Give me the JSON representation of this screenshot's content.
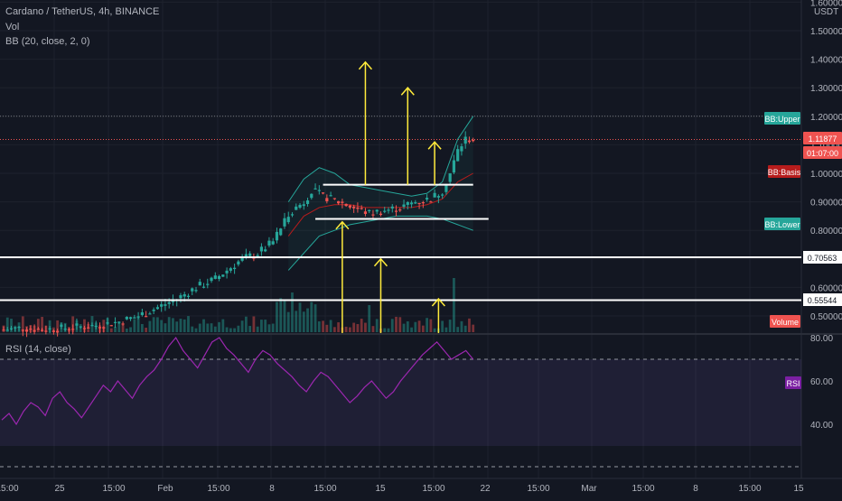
{
  "header": {
    "title": "Cardano / TetherUS, 4h, BINANCE",
    "vol_label": "Vol",
    "bb_label": "BB (20, close, 2, 0)",
    "rsi_label": "RSI (14, close)"
  },
  "price_axis": {
    "currency": "USDT",
    "ticks": [
      "1.60000",
      "1.50000",
      "1.40000",
      "1.30000",
      "1.20000",
      "1.10000",
      "1.00000",
      "0.90000",
      "0.80000",
      "0.70000",
      "0.60000",
      "0.50000"
    ],
    "tick_values": [
      1.6,
      1.5,
      1.4,
      1.3,
      1.2,
      1.1,
      1.0,
      0.9,
      0.8,
      0.7,
      0.6,
      0.5
    ]
  },
  "rsi_axis": {
    "ticks": [
      "80.00",
      "60.00",
      "40.00"
    ],
    "tick_values": [
      80,
      60,
      40
    ]
  },
  "badges": {
    "bb_upper": "BB:Upper",
    "last_price": "1.11877",
    "countdown": "01:07:00",
    "bb_basis": "BB:Basis",
    "bb_lower": "BB:Lower",
    "level_high": "0.70563",
    "level_low": "0.55544",
    "volume": "Volume",
    "rsi": "RSI"
  },
  "time_axis": [
    "15:00",
    "25",
    "15:00",
    "Feb",
    "15:00",
    "8",
    "15:00",
    "15",
    "15:00",
    "22",
    "15:00",
    "Mar",
    "15:00",
    "8",
    "15:00",
    "15"
  ],
  "colors": {
    "background": "#131722",
    "up": "#26a69a",
    "down": "#ef5350",
    "bb_band": "#26a69a",
    "bb_basis": "#b71c1c",
    "rsi_line": "#9c27b0",
    "annotation_arrow": "#ffeb3b",
    "annotation_line": "#ffffff",
    "grid": "#1e222d"
  },
  "chart_data": {
    "type": "candlestick",
    "symbol": "Cardano / TetherUS",
    "interval": "4h",
    "exchange": "BINANCE",
    "close_path": [
      [
        0,
        0.452
      ],
      [
        5,
        0.458
      ],
      [
        10,
        0.452
      ],
      [
        15,
        0.456
      ],
      [
        20,
        0.462
      ],
      [
        25,
        0.468
      ],
      [
        30,
        0.48
      ],
      [
        35,
        0.5
      ],
      [
        40,
        0.53
      ],
      [
        45,
        0.56
      ],
      [
        50,
        0.6
      ],
      [
        55,
        0.63
      ],
      [
        58,
        0.66
      ],
      [
        62,
        0.7
      ],
      [
        66,
        0.72
      ],
      [
        70,
        0.76
      ],
      [
        74,
        0.86
      ],
      [
        78,
        0.9
      ],
      [
        80,
        0.94
      ],
      [
        83,
        0.92
      ],
      [
        87,
        0.9
      ],
      [
        91,
        0.88
      ],
      [
        95,
        0.86
      ],
      [
        99,
        0.87
      ],
      [
        103,
        0.88
      ],
      [
        107,
        0.9
      ],
      [
        111,
        0.91
      ],
      [
        114,
        0.94
      ],
      [
        116,
        1.0
      ],
      [
        118,
        1.08
      ],
      [
        120,
        1.12
      ],
      [
        122,
        1.11877
      ]
    ],
    "bb_upper": [
      [
        74,
        0.9
      ],
      [
        78,
        0.98
      ],
      [
        82,
        1.02
      ],
      [
        86,
        1.0
      ],
      [
        90,
        0.96
      ],
      [
        94,
        0.95
      ],
      [
        98,
        0.94
      ],
      [
        102,
        0.93
      ],
      [
        106,
        0.92
      ],
      [
        110,
        0.93
      ],
      [
        114,
        0.97
      ],
      [
        118,
        1.12
      ],
      [
        122,
        1.2
      ]
    ],
    "bb_basis": [
      [
        74,
        0.78
      ],
      [
        78,
        0.85
      ],
      [
        82,
        0.88
      ],
      [
        86,
        0.89
      ],
      [
        90,
        0.89
      ],
      [
        94,
        0.88
      ],
      [
        98,
        0.88
      ],
      [
        102,
        0.88
      ],
      [
        106,
        0.88
      ],
      [
        110,
        0.89
      ],
      [
        114,
        0.91
      ],
      [
        118,
        0.97
      ],
      [
        122,
        1.0
      ]
    ],
    "bb_lower": [
      [
        74,
        0.66
      ],
      [
        78,
        0.72
      ],
      [
        82,
        0.78
      ],
      [
        86,
        0.8
      ],
      [
        90,
        0.82
      ],
      [
        94,
        0.83
      ],
      [
        98,
        0.84
      ],
      [
        102,
        0.85
      ],
      [
        106,
        0.85
      ],
      [
        110,
        0.85
      ],
      [
        114,
        0.84
      ],
      [
        118,
        0.82
      ],
      [
        122,
        0.8
      ]
    ],
    "rsi": [
      42,
      45,
      40,
      46,
      50,
      48,
      44,
      52,
      55,
      50,
      47,
      43,
      48,
      53,
      58,
      55,
      60,
      56,
      52,
      58,
      62,
      65,
      70,
      76,
      80,
      74,
      70,
      66,
      72,
      78,
      80,
      75,
      72,
      68,
      64,
      70,
      74,
      72,
      68,
      65,
      62,
      58,
      55,
      60,
      64,
      62,
      58,
      54,
      50,
      53,
      57,
      60,
      56,
      52,
      55,
      60,
      64,
      68,
      72,
      75,
      78,
      74,
      70,
      72,
      74,
      70
    ],
    "rsi_overbought": 70,
    "rsi_oversold": 30,
    "horizontal_levels": [
      0.70563,
      0.55544
    ],
    "range_box": {
      "top": 0.96,
      "bottom": 0.84
    },
    "last_price": 1.11877,
    "ylim": [
      0.44,
      1.62
    ]
  }
}
